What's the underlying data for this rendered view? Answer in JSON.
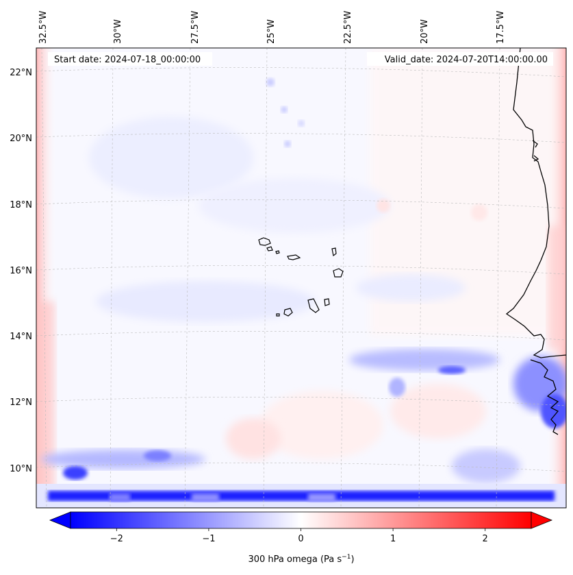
{
  "map": {
    "start_date": "Start date: 2024-07-18_00:00:00",
    "valid_date": "Valid_date: 2024-07-20T14:00:00.00",
    "lon_labels": [
      "32.5°W",
      "30°W",
      "27.5°W",
      "25°W",
      "22.5°W",
      "20°W",
      "17.5°W"
    ],
    "lat_labels": [
      "22°N",
      "20°N",
      "18°N",
      "16°N",
      "14°N",
      "12°N",
      "10°N"
    ],
    "gridlines": true
  },
  "colorbar": {
    "label": "300 hPa omega (Pa s",
    "label_sup": "−1",
    "label_end": ")",
    "ticks": [
      "−2",
      "−1",
      "0",
      "1",
      "2"
    ],
    "tick_values": [
      -2,
      -1,
      0,
      1,
      2
    ],
    "range": [
      -2.5,
      2.5
    ],
    "extend": "both",
    "colormap": "bwr",
    "colors": {
      "negative": "#0000ff",
      "zero": "#ffffff",
      "positive": "#ff0000"
    }
  }
}
